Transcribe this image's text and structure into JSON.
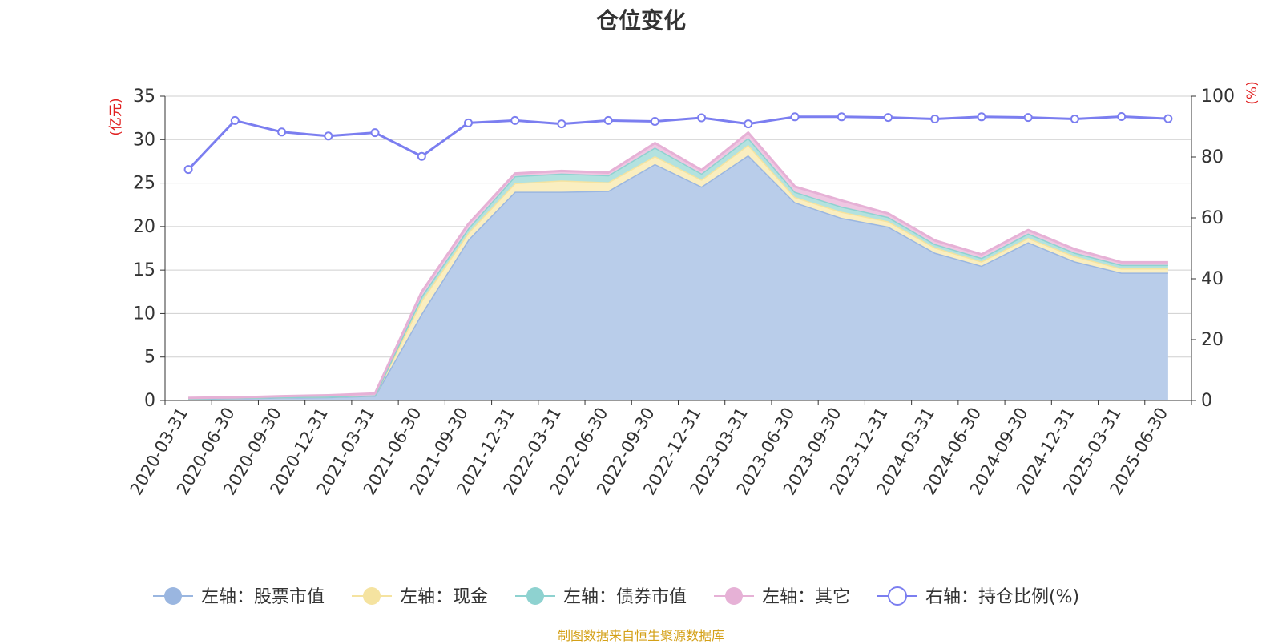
{
  "chart_data": {
    "type": "area",
    "title": "仓位变化",
    "ylabel_left": "(亿元)",
    "ylabel_right": "(%)",
    "ylim_left": [
      0,
      35
    ],
    "yticks_left": [
      0,
      5,
      10,
      15,
      20,
      25,
      30,
      35
    ],
    "ylim_right": [
      0,
      100
    ],
    "yticks_right": [
      0,
      20,
      40,
      60,
      80,
      100
    ],
    "grid": true,
    "legend_position": "bottom",
    "categories": [
      "2020-03-31",
      "2020-06-30",
      "2020-09-30",
      "2020-12-31",
      "2021-03-31",
      "2021-06-30",
      "2021-09-30",
      "2021-12-31",
      "2022-03-31",
      "2022-06-30",
      "2022-09-30",
      "2022-12-31",
      "2023-03-31",
      "2023-06-30",
      "2023-09-30",
      "2023-12-31",
      "2024-03-31",
      "2024-06-30",
      "2024-09-30",
      "2024-12-31",
      "2025-03-31",
      "2025-06-30"
    ],
    "series": [
      {
        "name": "左轴：股票市值",
        "axis": "left",
        "color": "#9ab6e0",
        "fill": "#b9cdea",
        "values": [
          0.2,
          0.25,
          0.35,
          0.4,
          0.55,
          10.0,
          18.5,
          24.0,
          24.0,
          24.1,
          27.2,
          24.6,
          28.2,
          22.8,
          21.0,
          20.0,
          17.0,
          15.5,
          18.2,
          16.0,
          14.7,
          14.7
        ]
      },
      {
        "name": "左轴：现金",
        "axis": "left",
        "color": "#f5e3a0",
        "fill": "#faeec0",
        "values": [
          0.05,
          0.05,
          0.05,
          0.05,
          0.05,
          1.5,
          0.8,
          1.0,
          1.3,
          1.0,
          0.9,
          0.8,
          1.2,
          0.6,
          0.7,
          0.6,
          0.6,
          0.5,
          0.5,
          0.6,
          0.5,
          0.5
        ]
      },
      {
        "name": "左轴：债券市值",
        "axis": "left",
        "color": "#8ed2d0",
        "fill": "#b3e2df",
        "values": [
          0,
          0,
          0,
          0,
          0,
          0.5,
          0.5,
          0.8,
          0.8,
          0.8,
          1.0,
          0.7,
          0.8,
          0.6,
          0.6,
          0.5,
          0.4,
          0.4,
          0.5,
          0.4,
          0.4,
          0.4
        ]
      },
      {
        "name": "左轴：其它",
        "axis": "left",
        "color": "#e6b1d6",
        "fill": "#efc7e2",
        "values": [
          0.05,
          0.05,
          0.1,
          0.15,
          0.2,
          0.5,
          0.5,
          0.3,
          0.3,
          0.3,
          0.5,
          0.4,
          0.6,
          0.6,
          0.7,
          0.4,
          0.4,
          0.4,
          0.4,
          0.4,
          0.3,
          0.3
        ]
      },
      {
        "name": "右轴：持仓比例(%)",
        "axis": "right",
        "color": "#7b7ef0",
        "values": [
          75.9,
          92.0,
          88.2,
          86.9,
          88.0,
          80.2,
          91.2,
          92.0,
          90.9,
          92.0,
          91.7,
          92.9,
          90.9,
          93.2,
          93.2,
          93.0,
          92.5,
          93.2,
          93.0,
          92.5,
          93.3,
          92.6
        ]
      }
    ]
  },
  "footer": {
    "source": "制图数据来自恒生聚源数据库"
  }
}
